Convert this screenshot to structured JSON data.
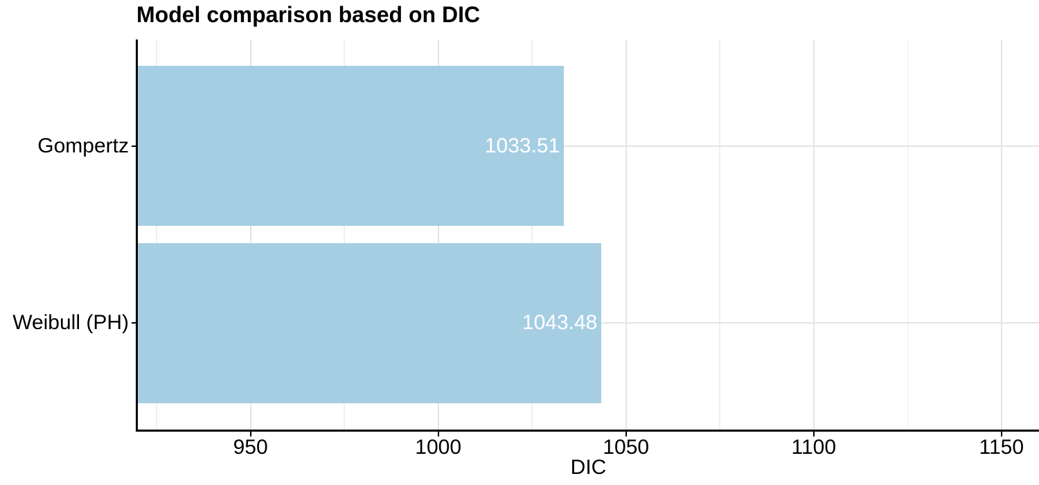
{
  "chart_data": {
    "type": "bar",
    "orientation": "horizontal",
    "title": "Model comparison based on DIC",
    "xlabel": "DIC",
    "ylabel": "",
    "categories": [
      "Gompertz",
      "Weibull (PH)"
    ],
    "values": [
      1033.51,
      1043.48
    ],
    "value_labels": [
      "1033.51",
      "1043.48"
    ],
    "xlim": [
      920,
      1160
    ],
    "x_ticks": [
      950,
      1000,
      1050,
      1100,
      1150
    ],
    "x_minor_ticks": [
      925,
      975,
      1025,
      1075,
      1125
    ],
    "legend": "none",
    "grid": {
      "vertical": "major+minor",
      "horizontal": "major"
    },
    "colors": {
      "bar_fill": "#A6CEE3",
      "bar_label": "#FFFFFF",
      "grid_major": "#E4E4E4",
      "grid_minor": "#EFEFEF",
      "axis_line": "#000000",
      "text": "#000000"
    }
  }
}
